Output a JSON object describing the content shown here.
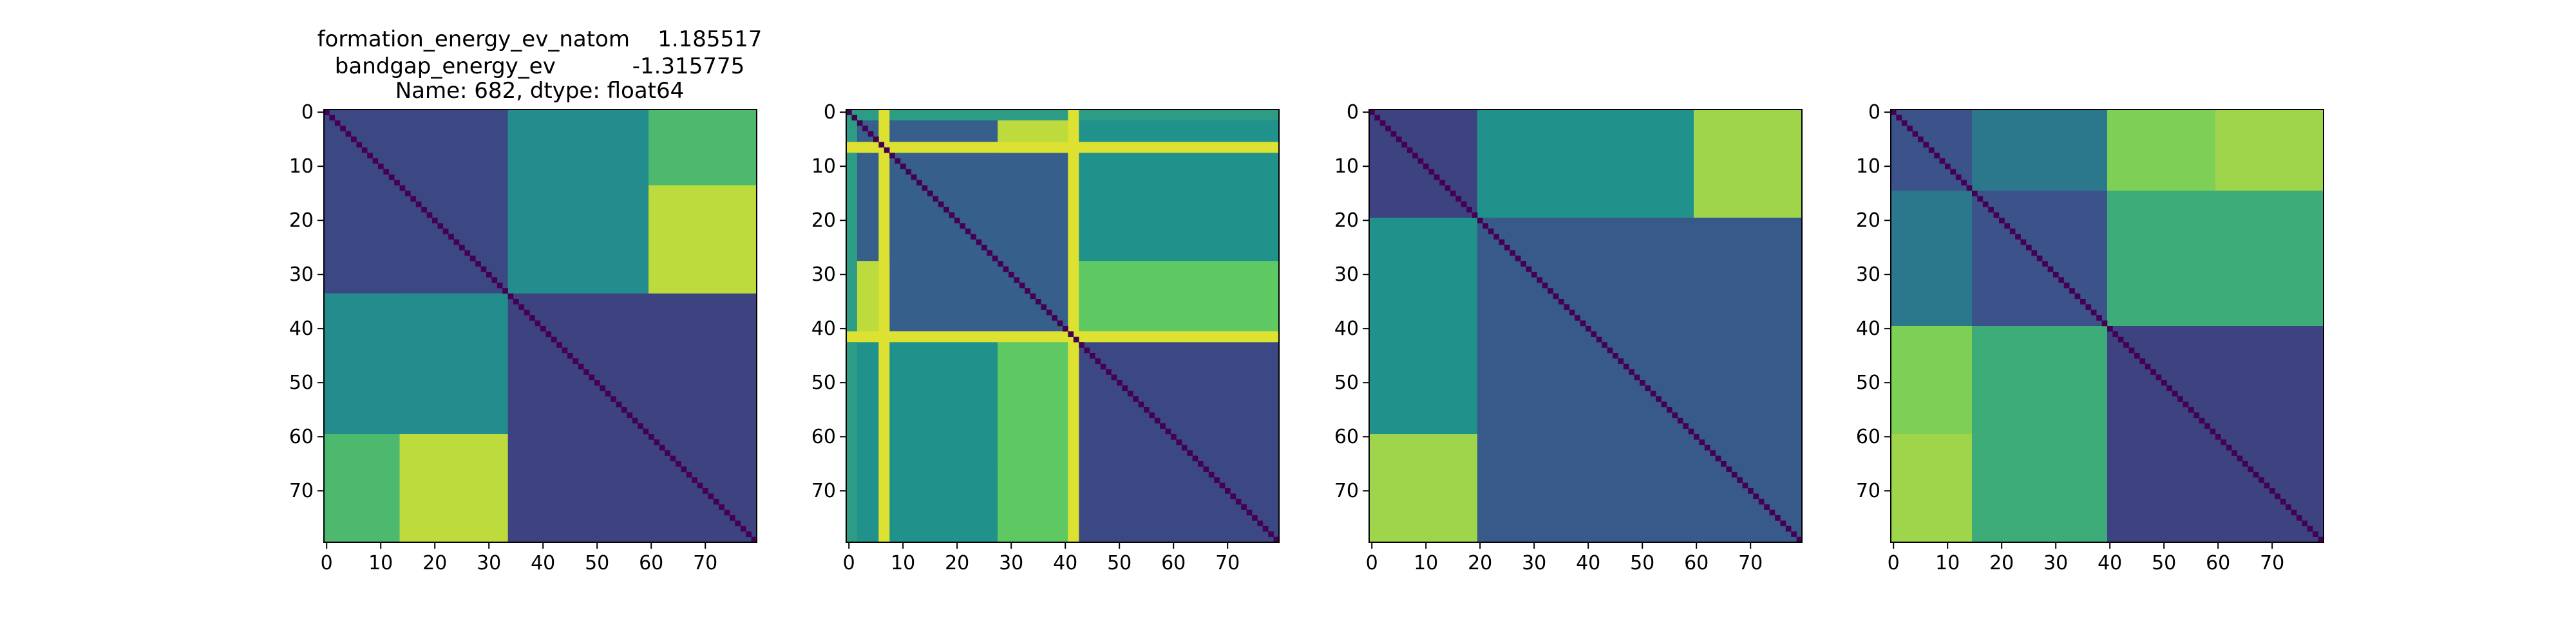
{
  "figure": {
    "background": "#ffffff",
    "title_lines": [
      "formation_energy_ev_natom    1.185517",
      "bandgap_energy_ev           -1.315775",
      "Name: 682, dtype: float64"
    ]
  },
  "chart_data": [
    {
      "type": "heatmap",
      "colormap": "viridis",
      "colormap_stops": [
        "#440154",
        "#3b528b",
        "#21918c",
        "#5ec962",
        "#fde725"
      ],
      "title": "",
      "xlabel": "",
      "ylabel": "",
      "size": 80,
      "xlim": [
        0,
        80
      ],
      "ylim": [
        80,
        0
      ],
      "xticks": [
        0,
        10,
        20,
        30,
        40,
        50,
        60,
        70
      ],
      "yticks": [
        0,
        10,
        20,
        30,
        40,
        50,
        60,
        70
      ],
      "diagonal_value": 0,
      "blocks": [
        {
          "rows": [
            0,
            34
          ],
          "cols": [
            0,
            34
          ],
          "value": 0.22
        },
        {
          "rows": [
            34,
            80
          ],
          "cols": [
            34,
            80
          ],
          "value": 0.2
        },
        {
          "rows": [
            0,
            14
          ],
          "cols": [
            34,
            60
          ],
          "value": 0.42
        },
        {
          "rows": [
            14,
            34
          ],
          "cols": [
            34,
            60
          ],
          "value": 0.5
        },
        {
          "rows": [
            0,
            14
          ],
          "cols": [
            60,
            80
          ],
          "value": 0.6
        },
        {
          "rows": [
            14,
            34
          ],
          "cols": [
            60,
            80
          ],
          "value": 0.88
        },
        {
          "rows": [
            34,
            60
          ],
          "cols": [
            0,
            34
          ],
          "value": 0.48
        },
        {
          "rows": [
            60,
            80
          ],
          "cols": [
            0,
            14
          ],
          "value": 0.68
        },
        {
          "rows": [
            60,
            80
          ],
          "cols": [
            14,
            34
          ],
          "value": 0.9
        }
      ]
    },
    {
      "type": "heatmap",
      "colormap": "viridis",
      "colormap_stops": [
        "#440154",
        "#3b528b",
        "#21918c",
        "#5ec962",
        "#fde725"
      ],
      "title": "",
      "xlabel": "",
      "ylabel": "",
      "size": 80,
      "xlim": [
        0,
        80
      ],
      "ylim": [
        80,
        0
      ],
      "xticks": [
        0,
        10,
        20,
        30,
        40,
        50,
        60,
        70
      ],
      "yticks": [
        0,
        10,
        20,
        30,
        40,
        50,
        60,
        70
      ],
      "diagonal_value": 0,
      "blocks": [
        {
          "rows": [
            0,
            43
          ],
          "cols": [
            0,
            43
          ],
          "value": 0.3
        },
        {
          "rows": [
            43,
            80
          ],
          "cols": [
            43,
            80
          ],
          "value": 0.22
        },
        {
          "rows": [
            0,
            8
          ],
          "cols": [
            28,
            43
          ],
          "value": 0.9
        },
        {
          "rows": [
            0,
            43
          ],
          "cols": [
            43,
            65
          ],
          "value": 0.72
        },
        {
          "rows": [
            0,
            43
          ],
          "cols": [
            65,
            80
          ],
          "value": 0.5
        },
        {
          "rows": [
            43,
            80
          ],
          "cols": [
            0,
            28
          ],
          "value": 0.5
        },
        {
          "rows": [
            43,
            80
          ],
          "cols": [
            28,
            43
          ],
          "value": 0.75
        },
        {
          "rows": [
            0,
            2
          ],
          "cols": [
            0,
            80
          ],
          "value": 0.55
        },
        {
          "rows": [
            6,
            8
          ],
          "cols": [
            0,
            80
          ],
          "value": 0.95
        },
        {
          "rows": [
            41,
            43
          ],
          "cols": [
            0,
            80
          ],
          "value": 0.95
        },
        {
          "rows": [
            0,
            80
          ],
          "cols": [
            0,
            2
          ],
          "value": 0.55
        },
        {
          "rows": [
            0,
            80
          ],
          "cols": [
            6,
            8
          ],
          "value": 0.95
        },
        {
          "rows": [
            0,
            80
          ],
          "cols": [
            41,
            43
          ],
          "value": 0.95
        }
      ]
    },
    {
      "type": "heatmap",
      "colormap": "viridis",
      "colormap_stops": [
        "#440154",
        "#3b528b",
        "#21918c",
        "#5ec962",
        "#fde725"
      ],
      "title": "",
      "xlabel": "",
      "ylabel": "",
      "size": 80,
      "xlim": [
        0,
        80
      ],
      "ylim": [
        80,
        0
      ],
      "xticks": [
        0,
        10,
        20,
        30,
        40,
        50,
        60,
        70
      ],
      "yticks": [
        0,
        10,
        20,
        30,
        40,
        50,
        60,
        70
      ],
      "diagonal_value": 0,
      "blocks": [
        {
          "rows": [
            0,
            20
          ],
          "cols": [
            0,
            20
          ],
          "value": 0.2
        },
        {
          "rows": [
            20,
            80
          ],
          "cols": [
            20,
            80
          ],
          "value": 0.28
        },
        {
          "rows": [
            0,
            20
          ],
          "cols": [
            20,
            60
          ],
          "value": 0.5
        },
        {
          "rows": [
            0,
            20
          ],
          "cols": [
            60,
            80
          ],
          "value": 0.85
        },
        {
          "rows": [
            20,
            60
          ],
          "cols": [
            0,
            20
          ],
          "value": 0.5
        },
        {
          "rows": [
            60,
            80
          ],
          "cols": [
            0,
            20
          ],
          "value": 0.85
        }
      ]
    },
    {
      "type": "heatmap",
      "colormap": "viridis",
      "colormap_stops": [
        "#440154",
        "#3b528b",
        "#21918c",
        "#5ec962",
        "#fde725"
      ],
      "title": "",
      "xlabel": "",
      "ylabel": "",
      "size": 80,
      "xlim": [
        0,
        80
      ],
      "ylim": [
        80,
        0
      ],
      "xticks": [
        0,
        10,
        20,
        30,
        40,
        50,
        60,
        70
      ],
      "yticks": [
        0,
        10,
        20,
        30,
        40,
        50,
        60,
        70
      ],
      "diagonal_value": 0,
      "blocks": [
        {
          "rows": [
            0,
            40
          ],
          "cols": [
            0,
            40
          ],
          "value": 0.25
        },
        {
          "rows": [
            40,
            80
          ],
          "cols": [
            40,
            80
          ],
          "value": 0.2
        },
        {
          "rows": [
            0,
            40
          ],
          "cols": [
            40,
            80
          ],
          "value": 0.68
        },
        {
          "rows": [
            40,
            80
          ],
          "cols": [
            0,
            15
          ],
          "value": 0.8
        },
        {
          "rows": [
            40,
            80
          ],
          "cols": [
            15,
            40
          ],
          "value": 0.62
        },
        {
          "rows": [
            0,
            15
          ],
          "cols": [
            60,
            80
          ],
          "value": 0.85
        },
        {
          "rows": [
            15,
            40
          ],
          "cols": [
            0,
            15
          ],
          "value": 0.4
        }
      ]
    }
  ]
}
